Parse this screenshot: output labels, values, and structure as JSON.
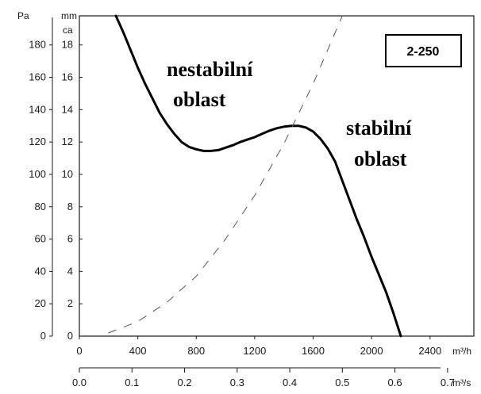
{
  "chart_data": {
    "type": "line",
    "units": {
      "pa": "Pa",
      "mm_top": "mm",
      "mm_bottom": "ca",
      "flow_h": "m³/h",
      "flow_s": "m³/s"
    },
    "model_label": "2-250",
    "pa_ticks": [
      "0",
      "20",
      "40",
      "60",
      "80",
      "100",
      "120",
      "140",
      "160",
      "180"
    ],
    "mm_ticks": [
      "0",
      "2",
      "4",
      "6",
      "8",
      "10",
      "12",
      "14",
      "16",
      "18"
    ],
    "flow_h_ticks": [
      "0",
      "400",
      "800",
      "1200",
      "1600",
      "2000",
      "2400"
    ],
    "flow_s_ticks": [
      "0.0",
      "0.1",
      "0.2",
      "0.3",
      "0.4",
      "0.5",
      "0.6",
      "0.7"
    ],
    "xlim": [
      0,
      2700
    ],
    "ylim": [
      0,
      198
    ],
    "annotations": {
      "unstable_line1": "nestabilní",
      "unstable_line2": "oblast",
      "stable_line1": "stabilní",
      "stable_line2": "oblast"
    },
    "series": [
      {
        "style": "solid",
        "x": [
          250,
          300,
          350,
          400,
          450,
          500,
          550,
          600,
          650,
          700,
          750,
          800,
          850,
          900,
          950,
          1000,
          1050,
          1100,
          1150,
          1200,
          1250,
          1300,
          1350,
          1400,
          1450,
          1500,
          1550,
          1600,
          1650,
          1700,
          1750,
          1800,
          1850,
          1900,
          1950,
          2000,
          2050,
          2100,
          2150,
          2200
        ],
        "y": [
          198,
          188,
          177,
          166,
          156,
          147,
          138,
          131,
          125,
          120,
          117,
          115.5,
          114.5,
          114.5,
          115,
          116.5,
          118,
          120,
          121.5,
          123,
          125,
          127,
          128.5,
          129.5,
          130,
          130,
          129,
          126.5,
          122,
          116,
          108,
          96,
          84,
          72,
          61,
          49,
          38,
          27,
          14,
          0
        ]
      },
      {
        "style": "dashed",
        "x": [
          200,
          400,
          600,
          800,
          1000,
          1200,
          1400,
          1600,
          1800
        ],
        "y": [
          2,
          9,
          21,
          37,
          60,
          87,
          119,
          156,
          198
        ]
      }
    ]
  }
}
